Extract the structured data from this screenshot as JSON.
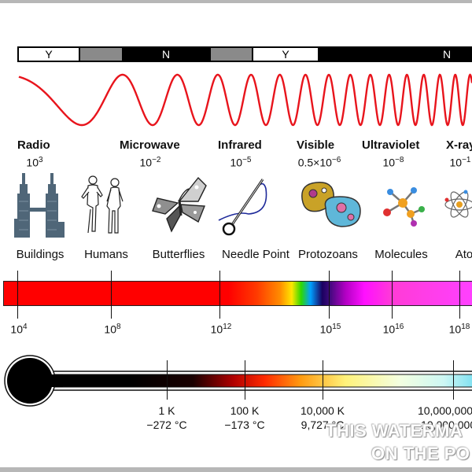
{
  "atmosphere_bar": [
    {
      "label": "Y",
      "fill": "#ffffff"
    },
    {
      "label": "",
      "fill": "#8a8a8a"
    },
    {
      "label": "N",
      "fill": "#000000"
    },
    {
      "label": "",
      "fill": "#8a8a8a"
    },
    {
      "label": "Y",
      "fill": "#ffffff"
    },
    {
      "label": "N",
      "fill": "#000000"
    }
  ],
  "bands": [
    {
      "name": "Radio",
      "wavelength": "10",
      "exp": "3"
    },
    {
      "name": "Microwave",
      "wavelength": "10",
      "exp": "−2"
    },
    {
      "name": "Infrared",
      "wavelength": "10",
      "exp": "−5"
    },
    {
      "name": "Visible",
      "wavelength": "0.5×10",
      "exp": "−6"
    },
    {
      "name": "Ultraviolet",
      "wavelength": "10",
      "exp": "−8"
    },
    {
      "name": "X-ray",
      "wavelength": "10",
      "exp": "−1"
    }
  ],
  "objects": [
    {
      "label": "Buildings",
      "icon": "buildings-icon"
    },
    {
      "label": "Humans",
      "icon": "humans-icon"
    },
    {
      "label": "Butterflies",
      "icon": "butterfly-icon"
    },
    {
      "label": "Needle Point",
      "icon": "needle-icon"
    },
    {
      "label": "Protozoans",
      "icon": "protozoan-icon"
    },
    {
      "label": "Molecules",
      "icon": "molecule-icon"
    },
    {
      "label": "Ato",
      "icon": "atom-icon"
    }
  ],
  "frequencies": [
    {
      "base": "10",
      "exp": "4"
    },
    {
      "base": "10",
      "exp": "8"
    },
    {
      "base": "10",
      "exp": "12"
    },
    {
      "base": "10",
      "exp": "15"
    },
    {
      "base": "10",
      "exp": "16"
    },
    {
      "base": "10",
      "exp": "18"
    }
  ],
  "temperatures": [
    {
      "kelvin": "1 K",
      "celsius": "−272 °C"
    },
    {
      "kelvin": "100 K",
      "celsius": "−173 °C"
    },
    {
      "kelvin": "10,000 K",
      "celsius": "9,727 °C"
    },
    {
      "kelvin": "10,000,000",
      "celsius": "~10,000,000"
    }
  ],
  "wave_color": "#e8141c",
  "watermark": [
    "THIS WATERMA",
    "ON THE PO"
  ]
}
